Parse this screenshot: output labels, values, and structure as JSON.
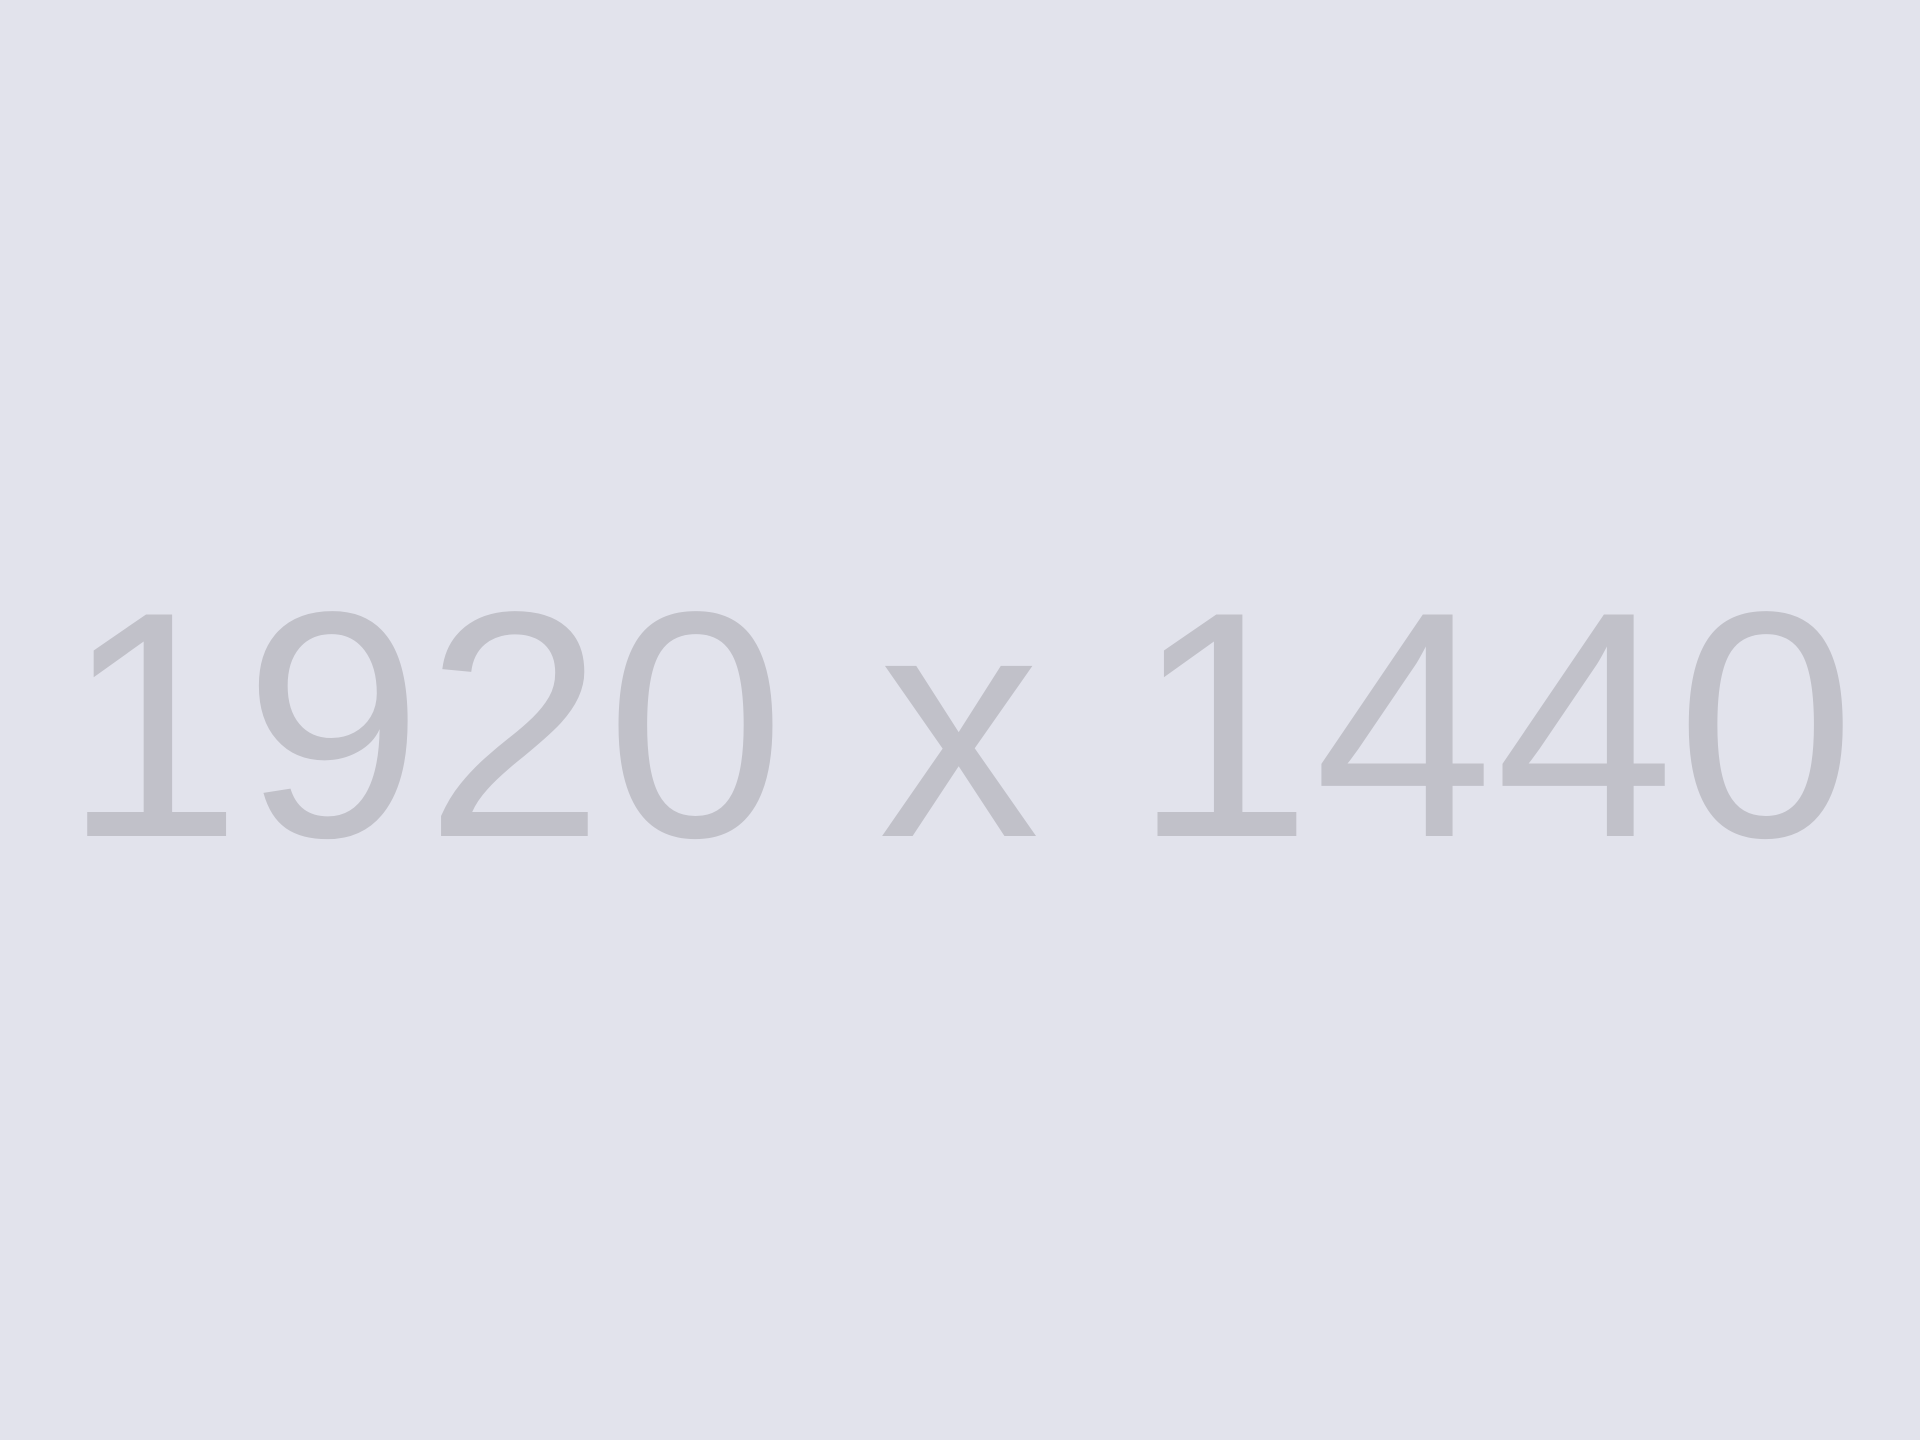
{
  "placeholder": {
    "label": "1920 x 1440",
    "background_color": "#E2E3EC",
    "text_color": "#C1C1C9"
  }
}
